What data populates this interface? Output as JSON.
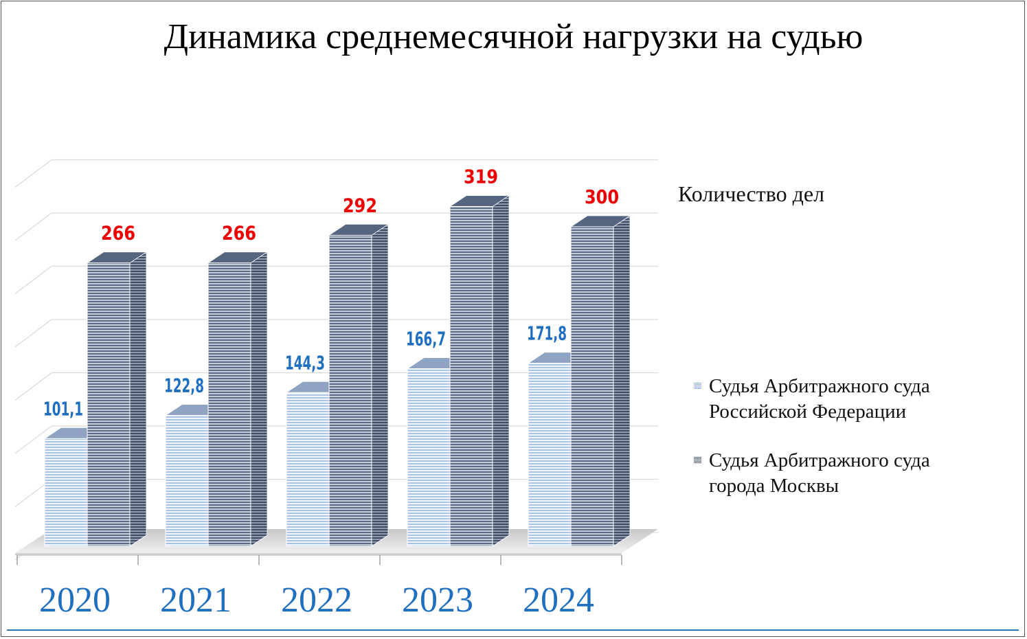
{
  "chart_data": {
    "type": "bar",
    "title": "Динамика среднемесячной нагрузки на судью",
    "ylabel": "Количество дел",
    "xlabel": "",
    "categories": [
      "2020",
      "2021",
      "2022",
      "2023",
      "2024"
    ],
    "ylim": [
      0,
      350
    ],
    "grid": true,
    "legend_position": "right",
    "series": [
      {
        "name": "Судья Арбитражного суда\nРоссийской Федерации",
        "values": [
          101.1,
          122.8,
          144.3,
          166.7,
          171.8
        ],
        "labels": [
          "101,1",
          "122,8",
          "144,3",
          "166,7",
          "171,8"
        ],
        "color": "#dce6f4",
        "label_color": "#1f6fc0"
      },
      {
        "name": "Судья Арбитражного суда\nгорода Москвы",
        "values": [
          266,
          266,
          292,
          319,
          300
        ],
        "labels": [
          "266",
          "266",
          "292",
          "319",
          "300"
        ],
        "color": "#7f8fa9",
        "label_color": "#ee0000"
      }
    ],
    "category_label_color": "#1f6fc0"
  }
}
